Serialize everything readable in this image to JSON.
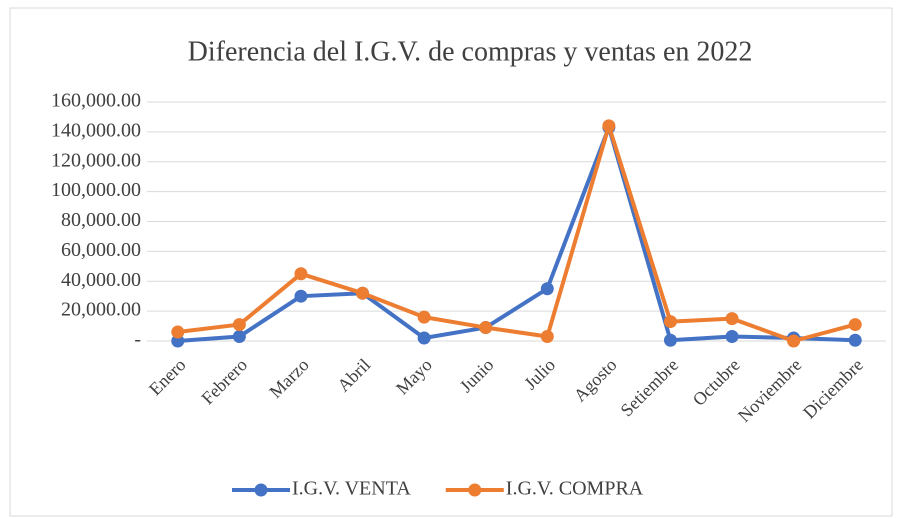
{
  "chart_data": {
    "type": "line",
    "title": "Diferencia del I.G.V. de compras y ventas en 2022",
    "categories": [
      "Enero",
      "Febrero",
      "Marzo",
      "Abril",
      "Mayo",
      "Junio",
      "Julio",
      "Agosto",
      "Setiembre",
      "Octubre",
      "Noviembre",
      "Diciembre"
    ],
    "series": [
      {
        "name": "I.G.V. VENTA",
        "color": "#4472c4",
        "values": [
          0,
          3000,
          30000,
          32000,
          2000,
          9000,
          35000,
          143000,
          500,
          3000,
          2000,
          500
        ]
      },
      {
        "name": "I.G.V. COMPRA",
        "color": "#ed7d31",
        "values": [
          6000,
          11000,
          45000,
          32000,
          16000,
          9000,
          3000,
          144000,
          13000,
          15000,
          0,
          11000
        ]
      }
    ],
    "ylim": [
      0,
      160000
    ],
    "yticks": [
      {
        "value": 0,
        "label": "-"
      },
      {
        "value": 20000,
        "label": "20,000.00"
      },
      {
        "value": 40000,
        "label": "40,000.00"
      },
      {
        "value": 60000,
        "label": "60,000.00"
      },
      {
        "value": 80000,
        "label": "80,000.00"
      },
      {
        "value": 100000,
        "label": "100,000.00"
      },
      {
        "value": 120000,
        "label": "120,000.00"
      },
      {
        "value": 140000,
        "label": "140,000.00"
      },
      {
        "value": 160000,
        "label": "160,000.00"
      }
    ],
    "grid": true,
    "legend": "bottom"
  }
}
